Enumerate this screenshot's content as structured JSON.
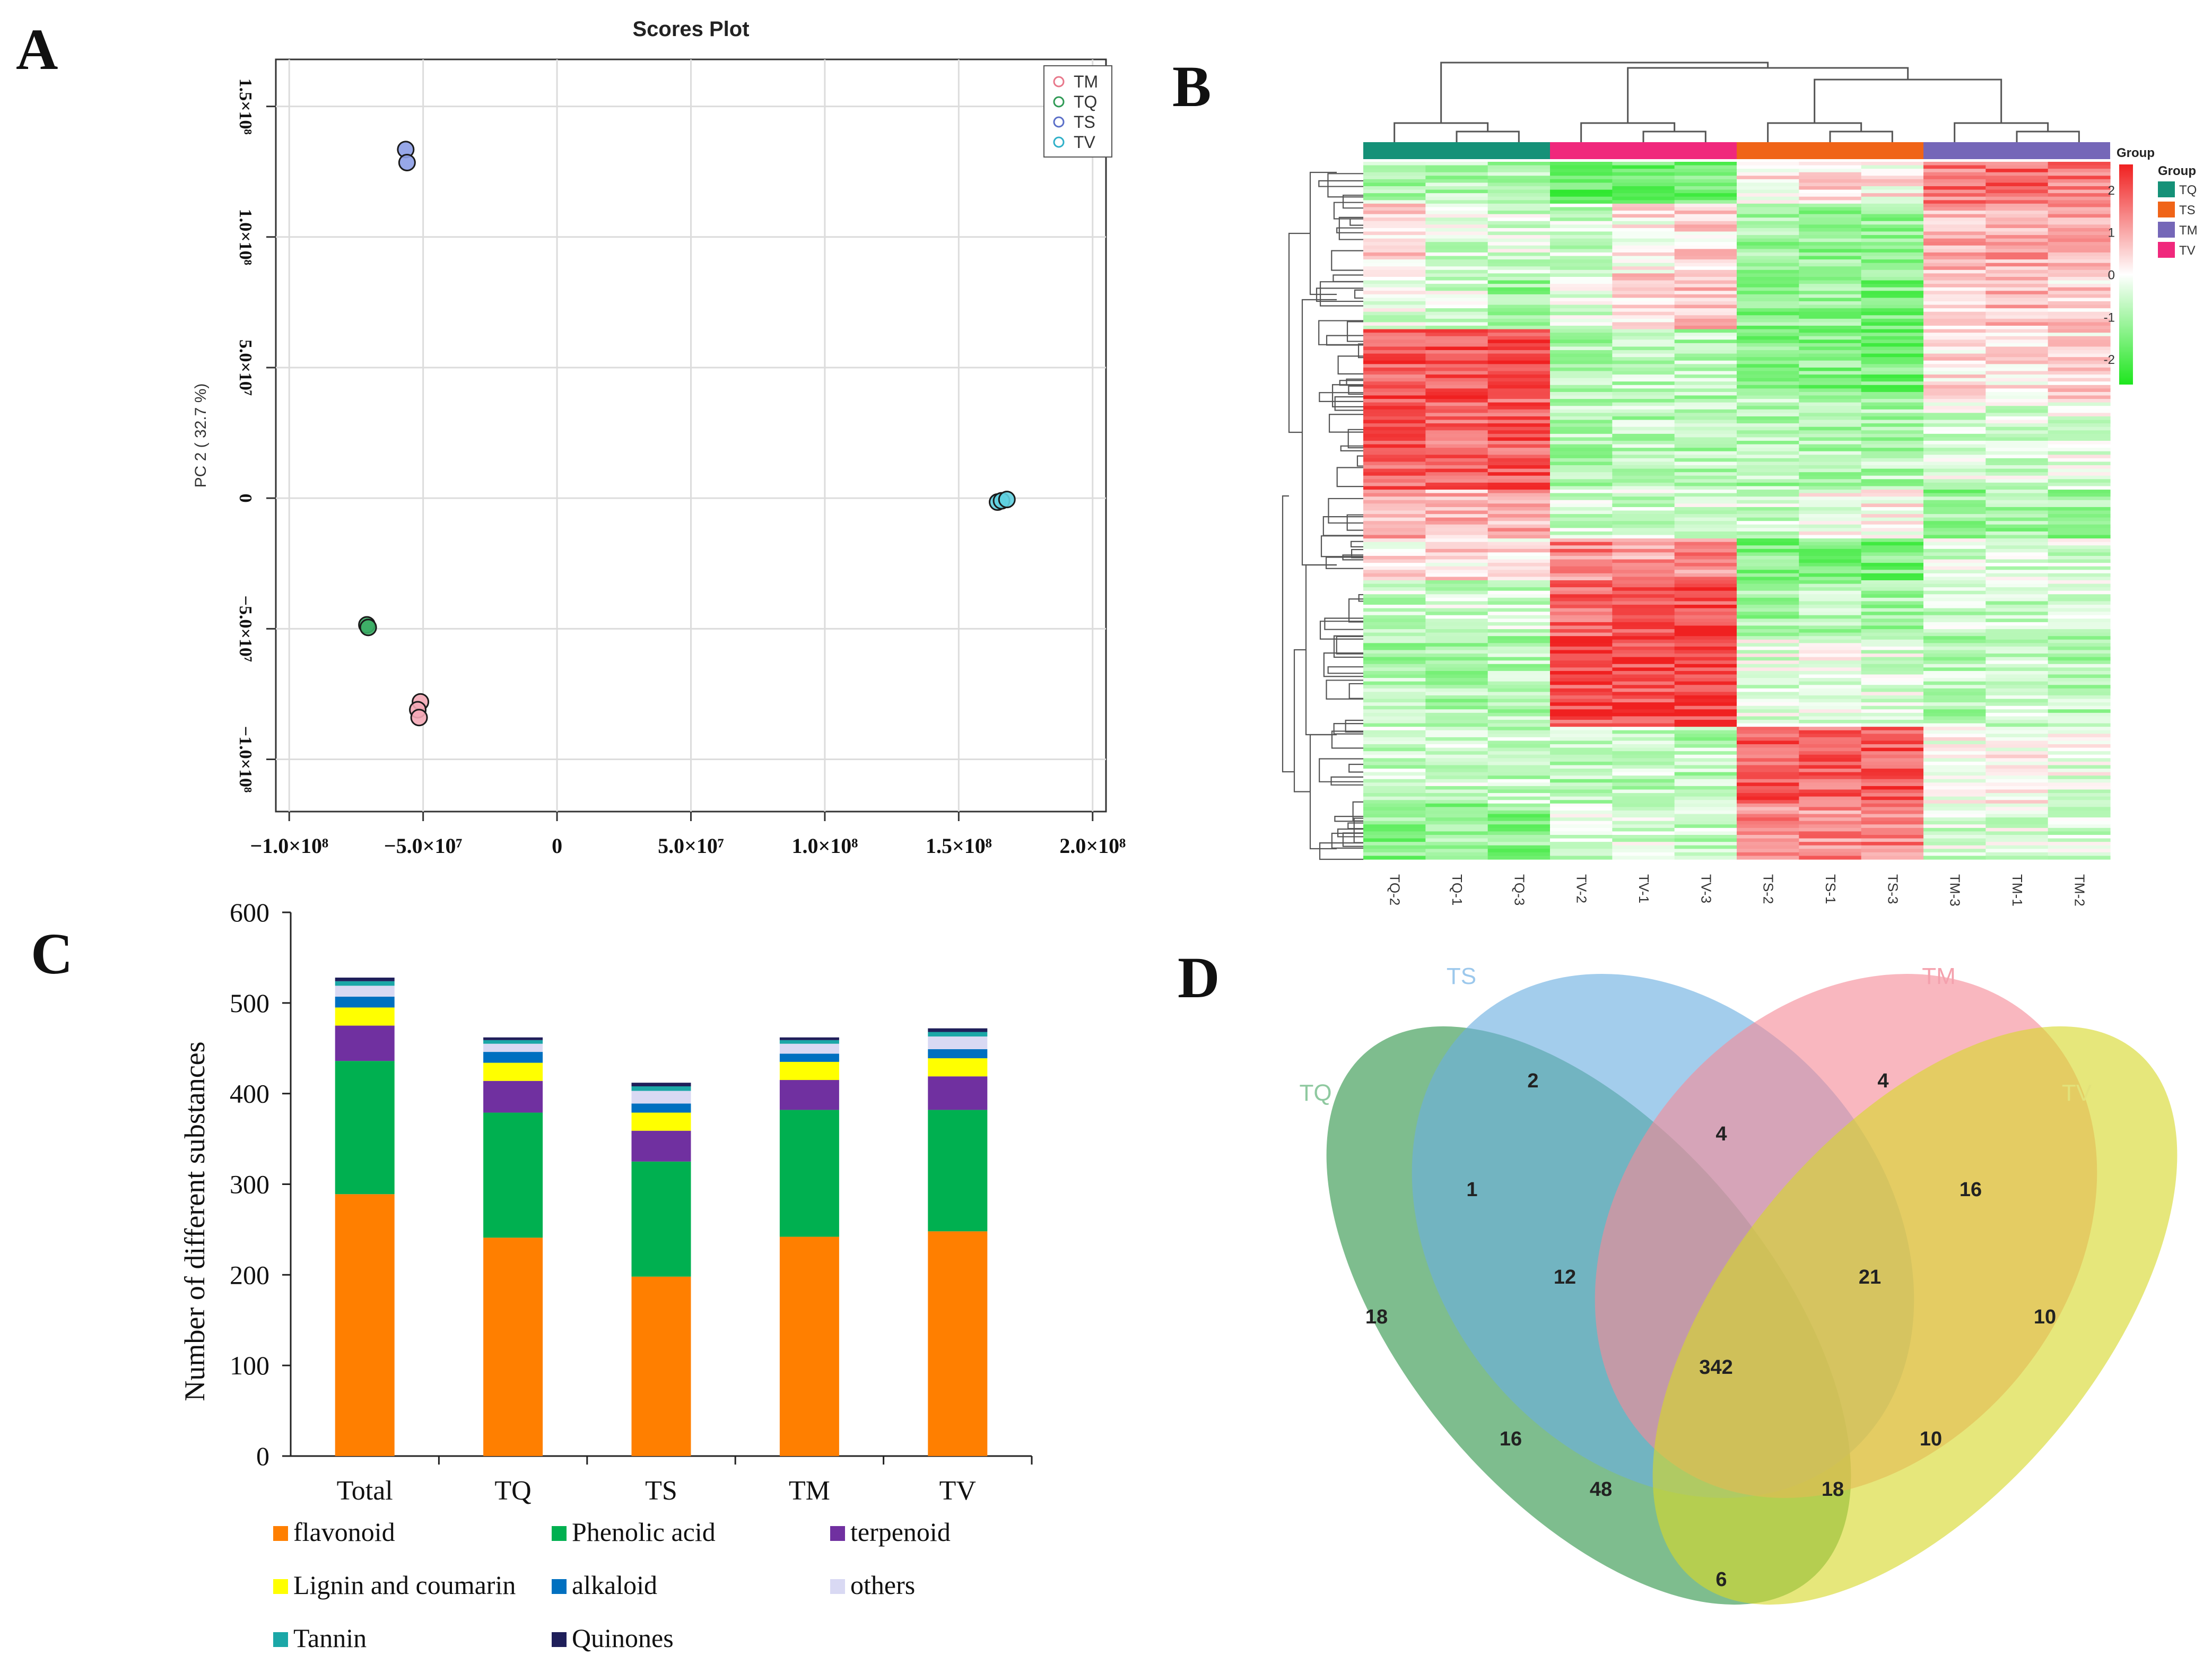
{
  "panel_labels": {
    "a": "A",
    "b": "B",
    "c": "C",
    "d": "D"
  },
  "chart_data": [
    {
      "panel": "A",
      "type": "scatter",
      "title": "Scores Plot",
      "xlabel": "",
      "ylabel": "PC 2 ( 32.7 %)",
      "xlim": [
        -105000000,
        205000000
      ],
      "ylim": [
        -120000000,
        168000000
      ],
      "x_ticks": [
        {
          "v": -100000000,
          "label": "−1.0×10⁸"
        },
        {
          "v": -50000000,
          "label": "−5.0×10⁷"
        },
        {
          "v": 0,
          "label": "0"
        },
        {
          "v": 50000000,
          "label": "5.0×10⁷"
        },
        {
          "v": 100000000,
          "label": "1.0×10⁸"
        },
        {
          "v": 150000000,
          "label": "1.5×10⁸"
        },
        {
          "v": 200000000,
          "label": "2.0×10⁸"
        }
      ],
      "y_ticks": [
        {
          "v": -100000000,
          "label": "−1.0×10⁸"
        },
        {
          "v": -50000000,
          "label": "−5.0×10⁷"
        },
        {
          "v": 0,
          "label": "0"
        },
        {
          "v": 50000000,
          "label": "5.0×10⁷"
        },
        {
          "v": 100000000,
          "label": "1.0×10⁸"
        },
        {
          "v": 150000000,
          "label": "1.5×10⁸"
        }
      ],
      "grid": true,
      "legend_position": "top-right",
      "series": [
        {
          "name": "TM",
          "color": "#e8778a",
          "fill": "#f4a9b6",
          "points": [
            [
              -51000000,
              -78000000
            ],
            [
              -52000000,
              -81000000
            ],
            [
              -51500000,
              -84000000
            ]
          ]
        },
        {
          "name": "TQ",
          "color": "#2f9a55",
          "fill": "#3cae66",
          "points": [
            [
              -71000000,
              -48500000
            ],
            [
              -70500000,
              -49500000
            ]
          ]
        },
        {
          "name": "TS",
          "color": "#5b6fc8",
          "fill": "#8c9de6",
          "points": [
            [
              -56500000,
              133500000
            ],
            [
              -56000000,
              128500000
            ]
          ]
        },
        {
          "name": "TV",
          "color": "#2fb0c8",
          "fill": "#5fd0e0",
          "points": [
            [
              164500000,
              -1500000
            ],
            [
              166000000,
              -1000000
            ],
            [
              168000000,
              -500000
            ]
          ]
        }
      ]
    },
    {
      "panel": "B",
      "type": "heatmap",
      "columns": [
        "TQ-2",
        "TQ-1",
        "TQ-3",
        "TV-2",
        "TV-1",
        "TV-3",
        "TS-2",
        "TS-1",
        "TS-3",
        "TM-3",
        "TM-1",
        "TM-2"
      ],
      "group_bar_label": "Group",
      "groups": [
        {
          "name": "TQ",
          "color": "#159178",
          "span": 3
        },
        {
          "name": "TV",
          "color": "#f0287c",
          "span": 3
        },
        {
          "name": "TS",
          "color": "#f06418",
          "span": 3
        },
        {
          "name": "TM",
          "color": "#7567b8",
          "span": 3
        }
      ],
      "legend_title": "Group",
      "legend": [
        {
          "name": "TQ",
          "color": "#159178"
        },
        {
          "name": "TS",
          "color": "#f06418"
        },
        {
          "name": "TM",
          "color": "#7567b8"
        },
        {
          "name": "TV",
          "color": "#f0287c"
        }
      ],
      "color_scale": {
        "min": -2.6,
        "max": 2.6,
        "low_color": "#1ee61e",
        "mid_color": "#ffffff",
        "high_color": "#f02020",
        "ticks": [
          {
            "v": 2,
            "label": "2"
          },
          {
            "v": 1,
            "label": "1"
          },
          {
            "v": 0,
            "label": "0"
          },
          {
            "v": -1,
            "label": "-1"
          },
          {
            "v": -2,
            "label": "-2"
          }
        ]
      },
      "row_blocks": [
        {
          "frac": 0.06,
          "values": [
            -0.9,
            -0.9,
            -0.9,
            -1.7,
            -1.7,
            -1.6,
            0.3,
            0.3,
            0.2,
            1.6,
            1.7,
            1.5
          ]
        },
        {
          "frac": 0.1,
          "values": [
            0.5,
            -0.4,
            -0.4,
            -0.6,
            0.2,
            0.4,
            -1.0,
            -1.2,
            -1.1,
            0.9,
            1.0,
            1.0
          ]
        },
        {
          "frac": 0.08,
          "values": [
            -0.3,
            -0.4,
            -1.2,
            -0.4,
            0.4,
            0.8,
            -1.3,
            -1.3,
            -1.5,
            0.6,
            0.7,
            0.5
          ]
        },
        {
          "frac": 0.1,
          "values": [
            2.0,
            2.0,
            2.2,
            -0.9,
            -0.7,
            -0.8,
            -1.5,
            -1.4,
            -1.6,
            0.4,
            0.3,
            0.4
          ]
        },
        {
          "frac": 0.13,
          "values": [
            1.9,
            1.8,
            1.9,
            -0.9,
            -0.8,
            -0.8,
            -0.9,
            -0.9,
            -0.9,
            -0.4,
            -0.4,
            -0.3
          ]
        },
        {
          "frac": 0.07,
          "values": [
            0.9,
            0.8,
            0.9,
            -0.5,
            -0.5,
            -0.5,
            -0.5,
            0.0,
            0.2,
            -1.2,
            -1.1,
            -1.2
          ]
        },
        {
          "frac": 0.06,
          "values": [
            0.2,
            0.4,
            0.3,
            1.4,
            1.2,
            1.3,
            -1.4,
            -1.5,
            -1.6,
            -0.4,
            -0.5,
            -0.4
          ]
        },
        {
          "frac": 0.08,
          "values": [
            -0.6,
            -0.5,
            -0.6,
            1.9,
            2.0,
            2.1,
            -1.0,
            -0.9,
            -1.0,
            -0.6,
            -0.6,
            -0.5
          ]
        },
        {
          "frac": 0.13,
          "values": [
            -0.9,
            -0.9,
            -0.9,
            2.0,
            2.1,
            2.2,
            -0.3,
            -0.2,
            -0.3,
            -0.8,
            -0.7,
            -0.9
          ]
        },
        {
          "frac": 0.11,
          "values": [
            -0.6,
            -0.5,
            -0.7,
            -0.8,
            -0.7,
            -0.8,
            1.9,
            1.8,
            2.0,
            -0.1,
            0.2,
            -0.2
          ]
        },
        {
          "frac": 0.08,
          "values": [
            -1.3,
            -1.2,
            -1.3,
            -0.5,
            -0.4,
            -0.6,
            1.4,
            1.3,
            1.5,
            -0.4,
            -0.3,
            -0.4
          ]
        }
      ]
    },
    {
      "panel": "C",
      "type": "bar",
      "stacked": true,
      "categories": [
        "Total",
        "TQ",
        "TS",
        "TM",
        "TV"
      ],
      "ylabel": "Number of different substances",
      "xlabel": "",
      "ylim": [
        0,
        600
      ],
      "y_ticks": [
        0,
        100,
        200,
        300,
        400,
        500,
        600
      ],
      "series": [
        {
          "name": "flavonoid",
          "color": "#ff7f00",
          "values": [
            289,
            241,
            198,
            242,
            248
          ]
        },
        {
          "name": "Phenolic acid",
          "color": "#00b050",
          "values": [
            147,
            138,
            127,
            140,
            134
          ]
        },
        {
          "name": "terpenoid",
          "color": "#7030a0",
          "values": [
            39,
            35,
            34,
            33,
            37
          ]
        },
        {
          "name": "Lignin and coumarin",
          "color": "#ffff00",
          "values": [
            20,
            20,
            20,
            20,
            20
          ]
        },
        {
          "name": "alkaloid",
          "color": "#0070c0",
          "values": [
            12,
            12,
            10,
            9,
            10
          ]
        },
        {
          "name": "others",
          "color": "#d9d9f3",
          "values": [
            12,
            9,
            14,
            11,
            14
          ]
        },
        {
          "name": "Tannin",
          "color": "#1ba7a7",
          "values": [
            5,
            4,
            5,
            4,
            5
          ]
        },
        {
          "name": "Quinones",
          "color": "#1f1f5a",
          "values": [
            4,
            3,
            4,
            3,
            4
          ]
        }
      ],
      "legend_position": "bottom"
    },
    {
      "panel": "D",
      "type": "venn",
      "sets": [
        {
          "name": "TQ",
          "color": "#2e9448",
          "text_color": "#8fc9a0"
        },
        {
          "name": "TS",
          "color": "#6aaee0",
          "text_color": "#9cc8ec"
        },
        {
          "name": "TM",
          "color": "#f58a98",
          "text_color": "#f4a1ad"
        },
        {
          "name": "TV",
          "color": "#d6d82a",
          "text_color": "#e2e27a"
        }
      ],
      "regions": [
        {
          "sets": "TQ",
          "value": "18"
        },
        {
          "sets": "TS",
          "value": "2"
        },
        {
          "sets": "TM",
          "value": "4"
        },
        {
          "sets": "TV",
          "value": "10"
        },
        {
          "sets": "TQ∩TS",
          "value": "1"
        },
        {
          "sets": "TS∩TM",
          "value": "4"
        },
        {
          "sets": "TM∩TV",
          "value": "16"
        },
        {
          "sets": "TQ∩TS∩TM",
          "value": "12"
        },
        {
          "sets": "TS∩TM∩TV",
          "value": "21"
        },
        {
          "sets": "TQ∩TS∩TM∩TV",
          "value": "342"
        },
        {
          "sets": "TQ∩TM",
          "value": "16"
        },
        {
          "sets": "TS∩TV",
          "value": "10"
        },
        {
          "sets": "TQ∩TM∩TV",
          "value": "48"
        },
        {
          "sets": "TQ∩TS∩TV",
          "value": "18"
        },
        {
          "sets": "TQ∩TV",
          "value": "6"
        }
      ]
    }
  ]
}
